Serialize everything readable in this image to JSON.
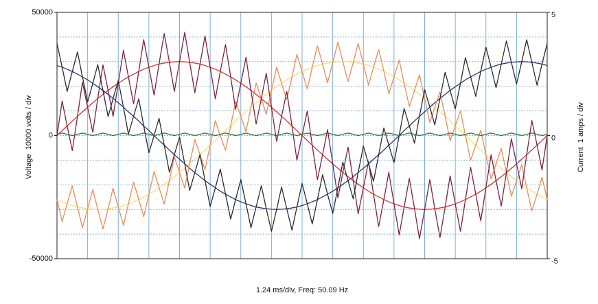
{
  "chart_data": {
    "type": "line",
    "xlabel": "1.24 ms/div, Freq: 50.09 Hz",
    "ylabel": "Voltage  10000 volts / div",
    "y2label": "Current  1 amps / div",
    "xlim": [
      0,
      19.84
    ],
    "ylim": [
      -50000,
      50000
    ],
    "yticks": [
      -50000,
      0,
      50000
    ],
    "y2lim": [
      -5,
      5
    ],
    "y2ticks": [
      -5,
      0,
      5
    ],
    "xgrid": [
      0,
      1.24,
      2.48,
      3.72,
      4.96,
      6.2,
      7.44,
      8.68,
      9.92,
      11.16,
      12.4,
      13.64,
      14.88,
      16.12,
      17.36,
      18.6,
      19.84
    ],
    "ygrid": [
      -40000,
      -30000,
      -20000,
      -10000,
      0,
      10000,
      20000,
      30000,
      40000
    ],
    "x": [
      0,
      0.21,
      0.41,
      0.62,
      0.83,
      1.03,
      1.24,
      1.45,
      1.65,
      1.86,
      2.07,
      2.27,
      2.48,
      2.69,
      2.89,
      3.1,
      3.31,
      3.51,
      3.72,
      3.93,
      4.13,
      4.34,
      4.55,
      4.75,
      4.96,
      5.17,
      5.37,
      5.58,
      5.79,
      5.99,
      6.2,
      6.41,
      6.61,
      6.82,
      7.03,
      7.23,
      7.44,
      7.65,
      7.85,
      8.06,
      8.27,
      8.47,
      8.68,
      8.89,
      9.09,
      9.3,
      9.51,
      9.71,
      9.92,
      10.13,
      10.33,
      10.54,
      10.75,
      10.95,
      11.16,
      11.37,
      11.57,
      11.78,
      11.99,
      12.19,
      12.4,
      12.61,
      12.81,
      13.02,
      13.23,
      13.43,
      13.64,
      13.85,
      14.05,
      14.26,
      14.47,
      14.67,
      14.88,
      15.09,
      15.29,
      15.5,
      15.71,
      15.91,
      16.12,
      16.33,
      16.53,
      16.74,
      16.95,
      17.15,
      17.36,
      17.57,
      17.77,
      17.98,
      18.19,
      18.39,
      18.6,
      18.81,
      19.01,
      19.22,
      19.43,
      19.63,
      19.84
    ],
    "series": [
      {
        "color": "#f3df80",
        "values": [
          -26000,
          -26900,
          -27700,
          -28400,
          -29000,
          -29400,
          -29700,
          -29900,
          -30000,
          -29900,
          -29700,
          -29400,
          -29000,
          -28400,
          -27700,
          -26900,
          -26000,
          -24900,
          -23800,
          -22600,
          -21200,
          -19800,
          -18300,
          -16700,
          -15000,
          -13300,
          -11500,
          -9600,
          -7800,
          -5900,
          -3900,
          -2000,
          0,
          2000,
          3900,
          5900,
          7800,
          9600,
          11500,
          13300,
          15000,
          16700,
          18300,
          19800,
          21200,
          22600,
          23800,
          24900,
          26000,
          26900,
          27700,
          28400,
          29000,
          29400,
          29700,
          29900,
          30000,
          29900,
          29700,
          29400,
          29000,
          28400,
          27700,
          26900,
          26000,
          24900,
          23800,
          22600,
          21200,
          19800,
          18300,
          16700,
          15000,
          13300,
          11500,
          9600,
          7800,
          5900,
          3900,
          2000,
          0,
          -2000,
          -3900,
          -5900,
          -7800,
          -9600,
          -11500,
          -13300,
          -15000,
          -16700,
          -18300,
          -19800,
          -21200,
          -22600,
          -23800,
          -24900,
          -26000
        ]
      },
      {
        "color": "#2b2f72",
        "values": [
          28400,
          27700,
          26900,
          26000,
          24900,
          23800,
          22600,
          21200,
          19800,
          18300,
          16700,
          15000,
          13300,
          11500,
          9600,
          7800,
          5900,
          3900,
          2000,
          0,
          -2000,
          -3900,
          -5900,
          -7800,
          -9600,
          -11500,
          -13300,
          -15000,
          -16700,
          -18300,
          -19800,
          -21200,
          -22600,
          -23800,
          -24900,
          -26000,
          -26900,
          -27700,
          -28400,
          -29000,
          -29400,
          -29700,
          -29900,
          -30000,
          -29900,
          -29700,
          -29400,
          -29000,
          -28400,
          -27700,
          -26900,
          -26000,
          -24900,
          -23800,
          -22600,
          -21200,
          -19800,
          -18300,
          -16700,
          -15000,
          -13300,
          -11500,
          -9600,
          -7800,
          -5900,
          -3900,
          -2000,
          0,
          2000,
          3900,
          5900,
          7800,
          9600,
          11500,
          13300,
          15000,
          16700,
          18300,
          19800,
          21200,
          22600,
          23800,
          24900,
          26000,
          26900,
          27700,
          28400,
          29000,
          29400,
          29700,
          29900,
          30000,
          29900,
          29700,
          29400,
          29000,
          28400
        ]
      },
      {
        "color": "#d9302c",
        "values": [
          0,
          2000,
          3900,
          5900,
          7800,
          9600,
          11500,
          13300,
          15000,
          16700,
          18300,
          19800,
          21200,
          22600,
          23800,
          24900,
          26000,
          26900,
          27700,
          28400,
          29000,
          29400,
          29700,
          29900,
          30000,
          29900,
          29700,
          29400,
          29000,
          28400,
          27700,
          26900,
          26000,
          24900,
          23800,
          22600,
          21200,
          19800,
          18300,
          16700,
          15000,
          13300,
          11500,
          9600,
          7800,
          5900,
          3900,
          2000,
          0,
          -2000,
          -3900,
          -5900,
          -7800,
          -9600,
          -11500,
          -13300,
          -15000,
          -16700,
          -18300,
          -19800,
          -21200,
          -22600,
          -23800,
          -24900,
          -26000,
          -26900,
          -27700,
          -28400,
          -29000,
          -29400,
          -29700,
          -29900,
          -30000,
          -29900,
          -29700,
          -29400,
          -29000,
          -28400,
          -27700,
          -26900,
          -26000,
          -24900,
          -23800,
          -22600,
          -21200,
          -19800,
          -18300,
          -16700,
          -15000,
          -13300,
          -11500,
          -9600,
          -7800,
          -5900,
          -3900,
          -2000,
          0
        ]
      },
      {
        "color": "#ef8a55",
        "values": [
          -26000,
          -34900,
          -27700,
          -20400,
          -29000,
          -37400,
          -29700,
          -21900,
          -30000,
          -37900,
          -29700,
          -21400,
          -29000,
          -36400,
          -27700,
          -18900,
          -26000,
          -32900,
          -23800,
          -14600,
          -21200,
          -27800,
          -18300,
          -8700,
          -15000,
          -21300,
          -11500,
          -1600,
          -7800,
          -13900,
          -3900,
          6000,
          0,
          -6000,
          3900,
          13900,
          7800,
          1600,
          11500,
          21300,
          15000,
          8700,
          18300,
          27800,
          21200,
          14600,
          23800,
          32900,
          26000,
          18900,
          27700,
          36400,
          29000,
          21400,
          29700,
          37900,
          30000,
          21900,
          29700,
          37400,
          29000,
          20400,
          27700,
          34900,
          26000,
          16900,
          23800,
          30600,
          21200,
          11800,
          18300,
          24700,
          15000,
          5300,
          11500,
          17600,
          7800,
          -2100,
          3900,
          10000,
          0,
          -10000,
          -3900,
          2100,
          -7800,
          -17600,
          -11500,
          -5300,
          -15000,
          -24700,
          -18300,
          -11800,
          -21200,
          -30600,
          -23800,
          -16900,
          -26000
        ]
      },
      {
        "color": "#7d2140",
        "values": [
          0,
          14000,
          3900,
          -6100,
          7800,
          21600,
          11500,
          1300,
          15000,
          28700,
          18300,
          7800,
          21200,
          34600,
          23800,
          12900,
          26000,
          38900,
          27700,
          16400,
          29000,
          41400,
          29700,
          17900,
          30000,
          41900,
          29700,
          17400,
          29000,
          40400,
          27700,
          14900,
          26000,
          36900,
          23800,
          10600,
          21200,
          31800,
          18300,
          4700,
          15000,
          25300,
          11500,
          -2400,
          7800,
          17900,
          3900,
          -10000,
          0,
          10000,
          -3900,
          -17900,
          -7800,
          2400,
          -11500,
          -25300,
          -15000,
          -4700,
          -18300,
          -31800,
          -21200,
          -10600,
          -23800,
          -36900,
          -26000,
          -14900,
          -27700,
          -40400,
          -29000,
          -17400,
          -29700,
          -41900,
          -30000,
          -17900,
          -29700,
          -41400,
          -29000,
          -16400,
          -27700,
          -38900,
          -26000,
          -12900,
          -23800,
          -34600,
          -21200,
          -7800,
          -18300,
          -28700,
          -15000,
          -1300,
          -11500,
          -21600,
          -7800,
          6100,
          -3900,
          -14000,
          0
        ]
      },
      {
        "color": "#2a2a2a",
        "values": [
          37400,
          27700,
          17900,
          26000,
          33900,
          23800,
          13600,
          21200,
          28800,
          18300,
          7700,
          15000,
          22300,
          11500,
          600,
          7800,
          14900,
          3900,
          -7000,
          0,
          7000,
          -3900,
          -14900,
          -7800,
          -600,
          -11500,
          -22300,
          -15000,
          -7700,
          -18300,
          -28800,
          -21200,
          -13600,
          -23800,
          -33900,
          -26000,
          -17900,
          -27700,
          -37400,
          -29000,
          -20400,
          -29700,
          -38900,
          -30000,
          -20900,
          -29700,
          -38400,
          -29000,
          -19400,
          -27700,
          -35900,
          -26000,
          -15900,
          -23800,
          -31600,
          -21200,
          -10800,
          -18300,
          -25700,
          -15000,
          -4300,
          -11500,
          -18600,
          -7800,
          3100,
          -3900,
          -11000,
          0,
          11000,
          3900,
          -3100,
          7800,
          18600,
          11500,
          4300,
          15000,
          25700,
          18300,
          10800,
          21200,
          31600,
          23800,
          15900,
          26000,
          35900,
          27700,
          19400,
          29000,
          38400,
          29700,
          20900,
          30000,
          38900,
          29700,
          20400,
          29000,
          37400
        ]
      },
      {
        "color": "#1e7a3c",
        "axis": "y2",
        "values": [
          0.05,
          0.1,
          0.05,
          0,
          0.05,
          0.1,
          0.05,
          0,
          0.05,
          0.1,
          0.05,
          0,
          0.05,
          0.1,
          0.05,
          0,
          0.05,
          0.1,
          0.05,
          0,
          0.05,
          0.1,
          0.05,
          0,
          0.05,
          0.1,
          0.05,
          0,
          0.05,
          0.1,
          0.05,
          0,
          0.05,
          0.1,
          0.05,
          0,
          0.05,
          0.1,
          0.05,
          0,
          0.05,
          0.1,
          0.05,
          0,
          0.05,
          0.1,
          0.05,
          0,
          0.05,
          0.1,
          0.05,
          0,
          0.05,
          0.1,
          0.05,
          0,
          0.05,
          0.1,
          0.05,
          0,
          0.05,
          0.1,
          0.05,
          0,
          0.05,
          0.1,
          0.05,
          0,
          0.05,
          0.1,
          0.05,
          0,
          0.05,
          0.1,
          0.05,
          0,
          0.05,
          0.1,
          0.05,
          0,
          0.05,
          0.1,
          0.05,
          0,
          0.05,
          0.1,
          0.05,
          0,
          0.05,
          0.1,
          0.05,
          0,
          0.05,
          0.1,
          0.05,
          0,
          0.05
        ]
      }
    ]
  }
}
